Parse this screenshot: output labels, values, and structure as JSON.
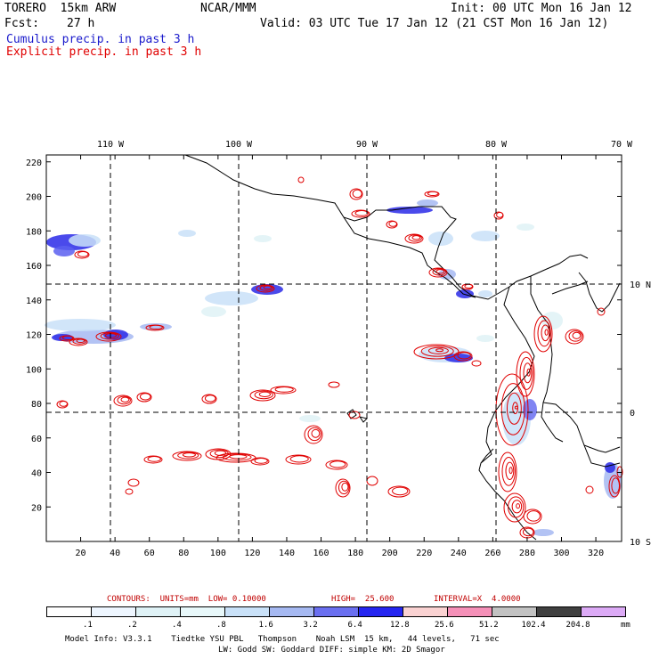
{
  "header": {
    "model": "TORERO  15km ARW",
    "center": "NCAR/MMM",
    "init": "Init: 00 UTC Mon 16 Jan 12",
    "fcst_label": "Fcst:",
    "fcst_value": "27 h",
    "valid": "Valid: 03 UTC Tue 17 Jan 12 (21 CST Mon 16 Jan 12)",
    "cumulus": "Cumulus precip. in past 3 h",
    "explicit": "Explicit precip. in past 3 h"
  },
  "colors": {
    "cumulus": "#1a1acc",
    "explicit": "#e00000",
    "contour": "#e00000",
    "grid": "#000000"
  },
  "map": {
    "lon_labels": [
      "110 W",
      "100 W",
      "90 W",
      "80 W",
      "70 W"
    ],
    "lat_labels": [
      "10 N",
      "0",
      "10 S"
    ],
    "x_ticks": [
      "20",
      "40",
      "60",
      "80",
      "100",
      "120",
      "140",
      "160",
      "180",
      "200",
      "220",
      "240",
      "260",
      "280",
      "300",
      "320"
    ],
    "y_ticks": [
      "220",
      "200",
      "180",
      "160",
      "140",
      "120",
      "100",
      "80",
      "60",
      "40",
      "20"
    ],
    "x_range": [
      0,
      335
    ],
    "y_range": [
      0,
      224
    ]
  },
  "contours_info": {
    "prefix": "CONTOURS:  UNITS=mm  LOW= 0.10000",
    "high": "HIGH=  25.600",
    "interval": "INTERVAL=X  4.0000"
  },
  "colorbar": {
    "unit": "mm",
    "labels": [
      ".1",
      ".2",
      ".4",
      ".8",
      "1.6",
      "3.2",
      "6.4",
      "12.8",
      "25.6",
      "51.2",
      "102.4",
      "204.8"
    ],
    "colors": [
      "#ffffff",
      "#eef6ff",
      "#dff2f6",
      "#e8f8fa",
      "#c9e1f8",
      "#a6b9f2",
      "#6a6ff0",
      "#2525f0",
      "#fad2d2",
      "#f590b8",
      "#c2c2c2",
      "#404040",
      "#dcaaf6"
    ]
  },
  "footer": {
    "line1": "Model Info: V3.3.1    Tiedtke YSU PBL   Thompson    Noah LSM  15 km,   44 levels,   71 sec",
    "line2": "LW: Godd SW: Goddard DIFF: simple KM: 2D Smagor"
  }
}
